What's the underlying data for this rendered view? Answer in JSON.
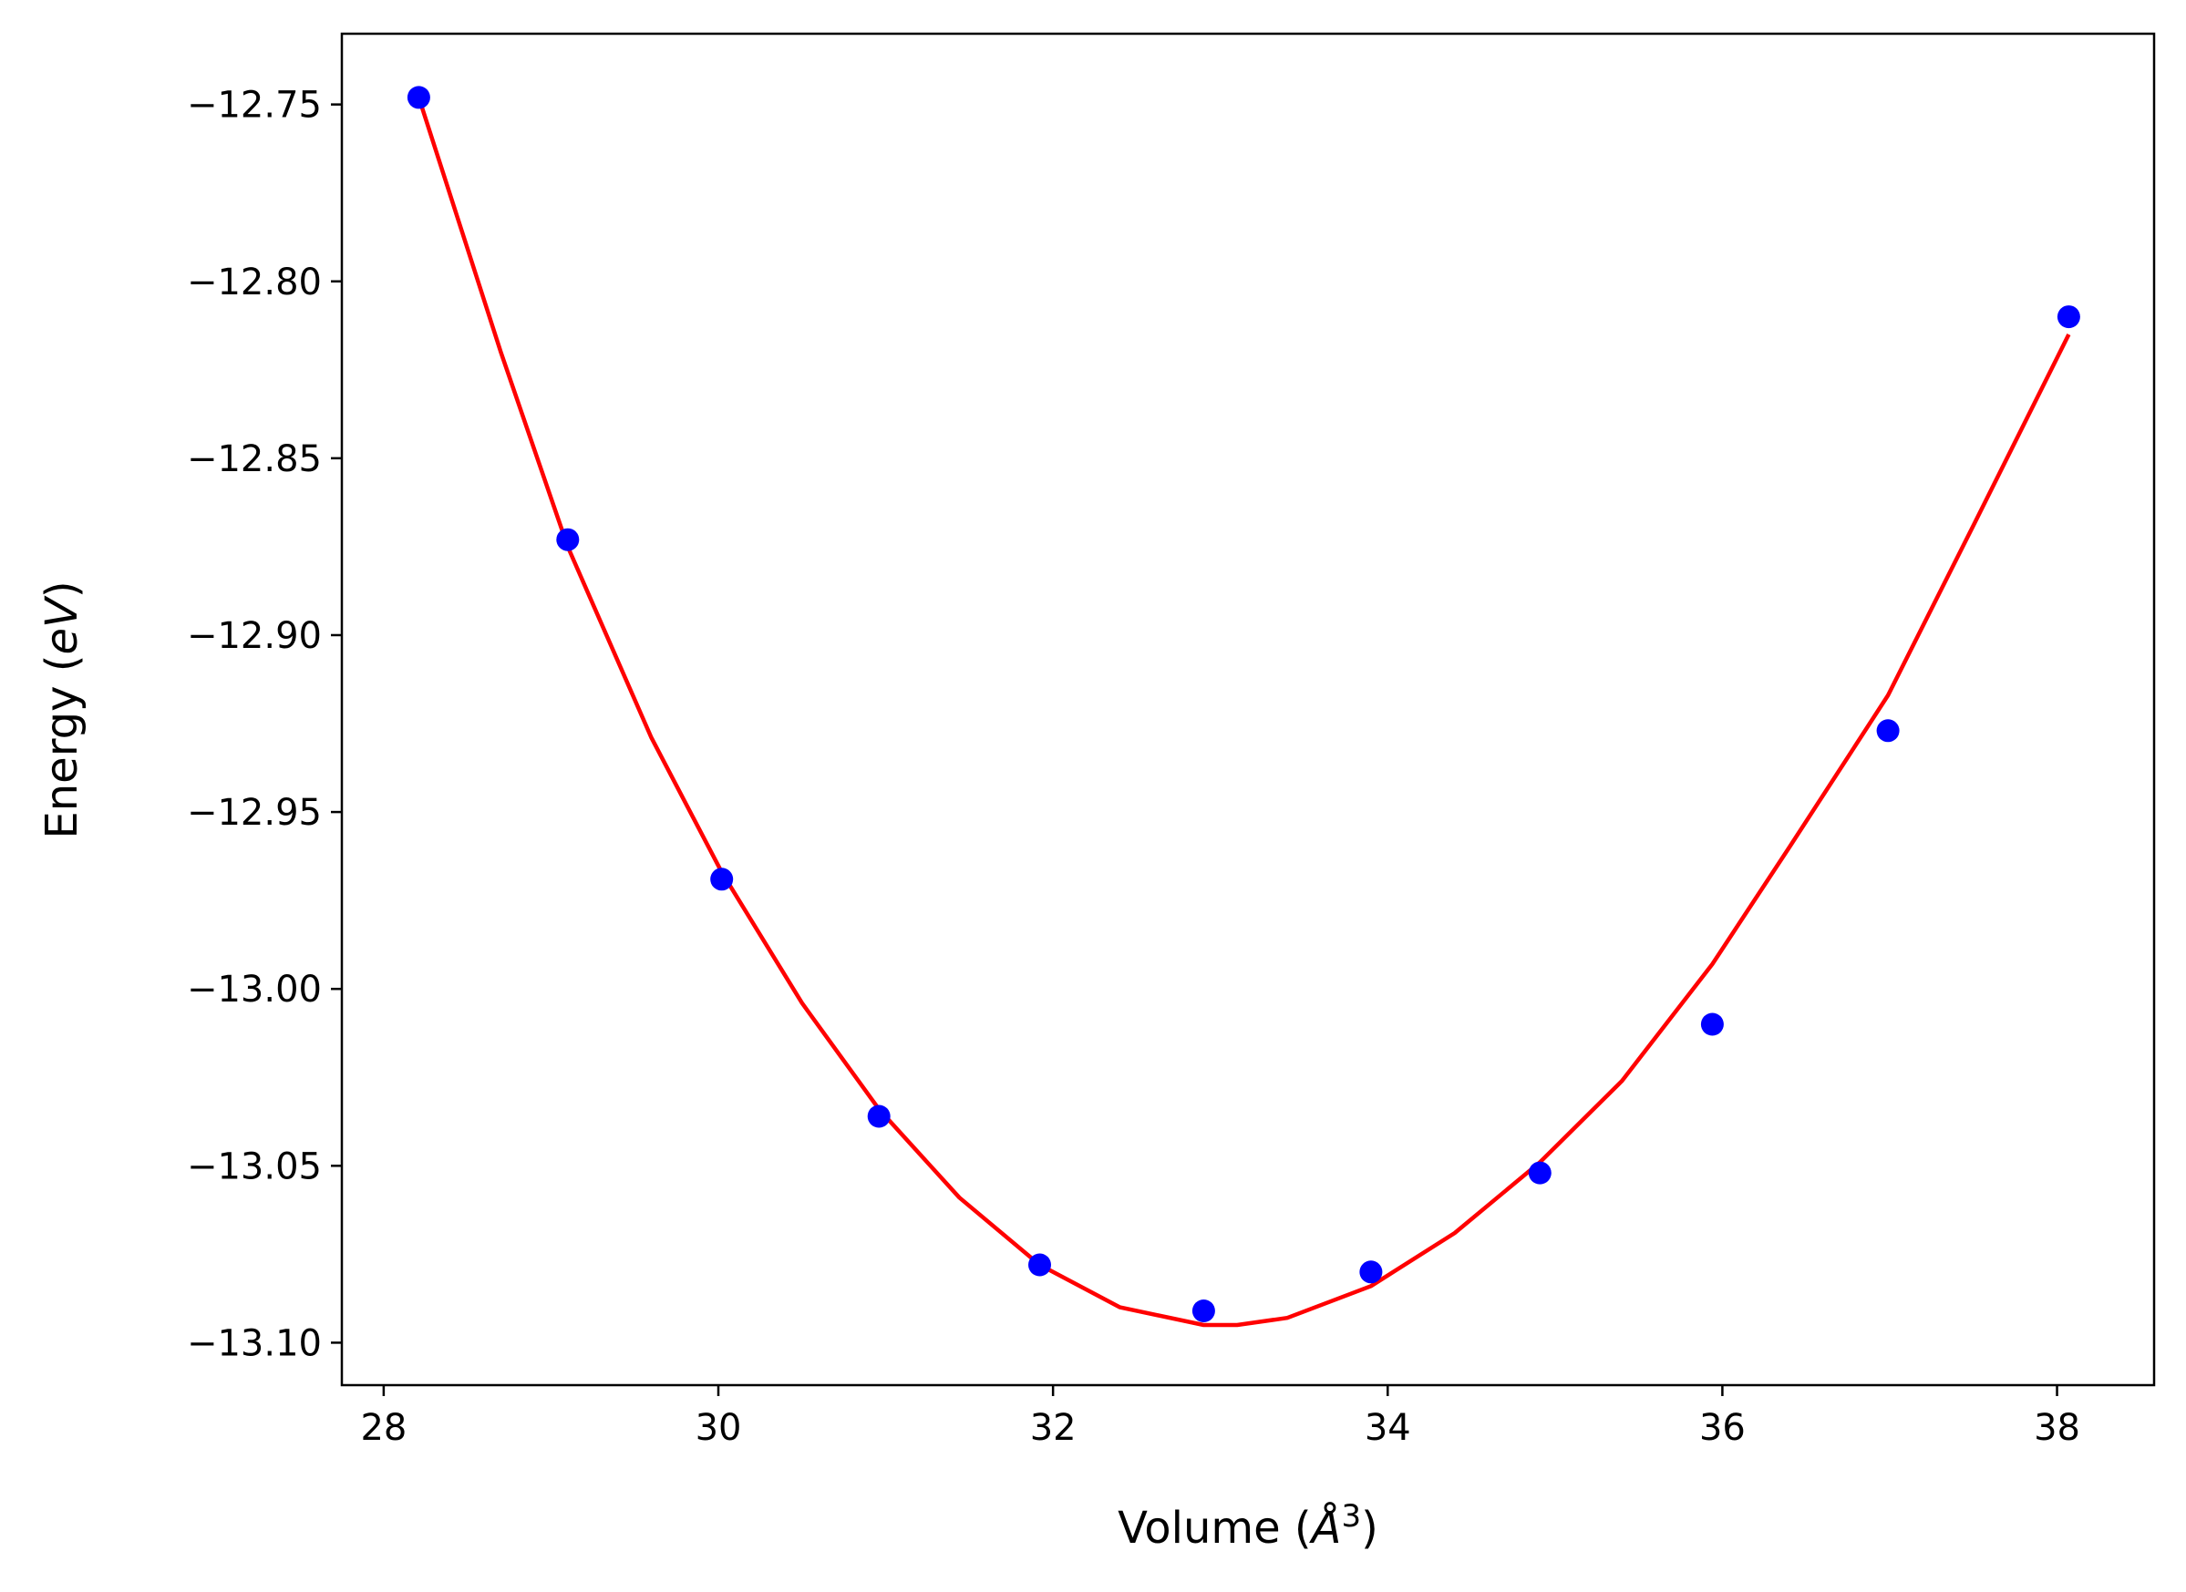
{
  "chart_data": {
    "type": "scatter",
    "xlabel": "Volume (Å³)",
    "xlabel_parts": {
      "prefix": "Volume (",
      "var": "Å",
      "sup": "3",
      "suffix": ")"
    },
    "ylabel": "Energy (eV)",
    "ylabel_parts": {
      "prefix": "Energy (",
      "var": "eV",
      "suffix": ")"
    },
    "xlim": [
      27.75,
      38.58
    ],
    "ylim": [
      -13.112,
      -12.73
    ],
    "x_ticks": [
      28,
      30,
      32,
      34,
      36,
      38
    ],
    "x_tick_labels": [
      "28",
      "30",
      "32",
      "34",
      "36",
      "38"
    ],
    "y_ticks": [
      -12.75,
      -12.8,
      -12.85,
      -12.9,
      -12.95,
      -13.0,
      -13.05,
      -13.1
    ],
    "y_tick_labels": [
      "−12.75",
      "−12.80",
      "−12.85",
      "−12.90",
      "−12.95",
      "−13.00",
      "−13.05",
      "−13.10"
    ],
    "grid": false,
    "legend": "none",
    "series": [
      {
        "kind": "points",
        "color": "#0000ff",
        "x": [
          28.21,
          29.1,
          30.02,
          30.96,
          31.92,
          32.9,
          33.9,
          34.91,
          35.94,
          36.99,
          38.07
        ],
        "y": [
          -12.748,
          -12.873,
          -12.969,
          -13.036,
          -13.078,
          -13.091,
          -13.08,
          -13.052,
          -13.01,
          -12.927,
          -12.81
        ]
      },
      {
        "kind": "fit-line",
        "color": "#ff0000",
        "x": [
          28.21,
          28.7,
          29.1,
          29.6,
          30.02,
          30.5,
          30.96,
          31.44,
          31.92,
          32.4,
          32.9,
          33.1,
          33.4,
          33.9,
          34.4,
          34.91,
          35.4,
          35.94,
          36.4,
          36.99,
          37.5,
          38.07
        ],
        "y": [
          -12.748,
          -12.82,
          -12.875,
          -12.929,
          -12.967,
          -13.004,
          -13.034,
          -13.059,
          -13.078,
          -13.09,
          -13.095,
          -13.095,
          -13.093,
          -13.084,
          -13.069,
          -13.049,
          -13.026,
          -12.993,
          -12.96,
          -12.917,
          -12.869,
          -12.815
        ]
      }
    ]
  }
}
